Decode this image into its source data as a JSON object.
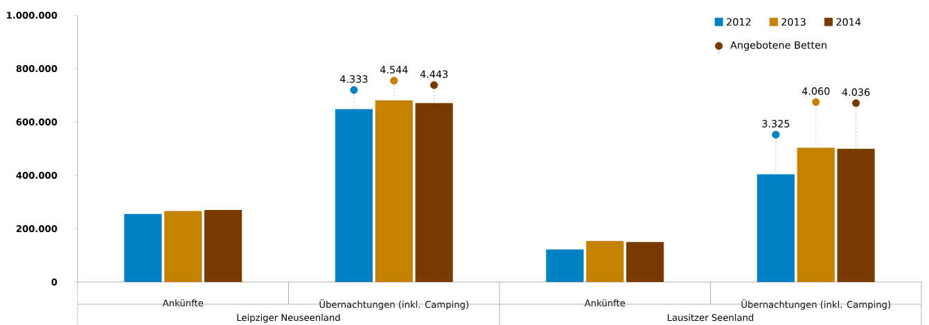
{
  "chart_data": {
    "type": "bar",
    "categories": [
      "Ankünfte",
      "Übernachtungen (inkl. Camping)",
      "Ankünfte",
      "Übernachtungen (inkl. Camping)"
    ],
    "annotations": [
      "Leipziger Neuseenland",
      "Lausitzer Seenland"
    ],
    "ylim": [
      0,
      1000000
    ],
    "yticks": [
      {
        "value": 0,
        "label": "0"
      },
      {
        "value": 200000,
        "label": "200.000"
      },
      {
        "value": 400000,
        "label": "400.000"
      },
      {
        "value": 600000,
        "label": "600.000"
      },
      {
        "value": 800000,
        "label": "800.000"
      },
      {
        "value": 1000000,
        "label": "1.000.000"
      }
    ],
    "y2lim": [
      0,
      6020
    ],
    "legend": "top right",
    "grid": false,
    "series": [
      {
        "name": "2012",
        "color": "#0081c6",
        "values": [
          255000,
          648000,
          122000,
          404000
        ]
      },
      {
        "name": "2013",
        "color": "#c48200",
        "values": [
          266000,
          681000,
          154000,
          503000
        ]
      },
      {
        "name": "2014",
        "color": "#773b00",
        "values": [
          270000,
          671000,
          150000,
          499000
        ]
      },
      {
        "type": "lollipop",
        "axis": "y2",
        "color": "#0081c6",
        "marker": "circle",
        "line_style": "dotted",
        "values": [
          null,
          4333,
          null,
          3325
        ],
        "value_labels": [
          null,
          "4.333",
          null,
          "3.325"
        ]
      },
      {
        "type": "lollipop",
        "axis": "y2",
        "color": "#c48200",
        "marker": "circle",
        "line_style": "dotted",
        "values": [
          null,
          4544,
          null,
          4060
        ],
        "value_labels": [
          null,
          "4.544",
          null,
          "4.060"
        ]
      },
      {
        "type": "lollipop",
        "axis": "y2",
        "name": "Angebotene Betten",
        "color": "#773b00",
        "marker": "circle",
        "line_style": "dotted",
        "values": [
          null,
          4443,
          null,
          4036
        ],
        "value_labels": [
          null,
          "4.443",
          null,
          "4.036"
        ]
      }
    ]
  }
}
